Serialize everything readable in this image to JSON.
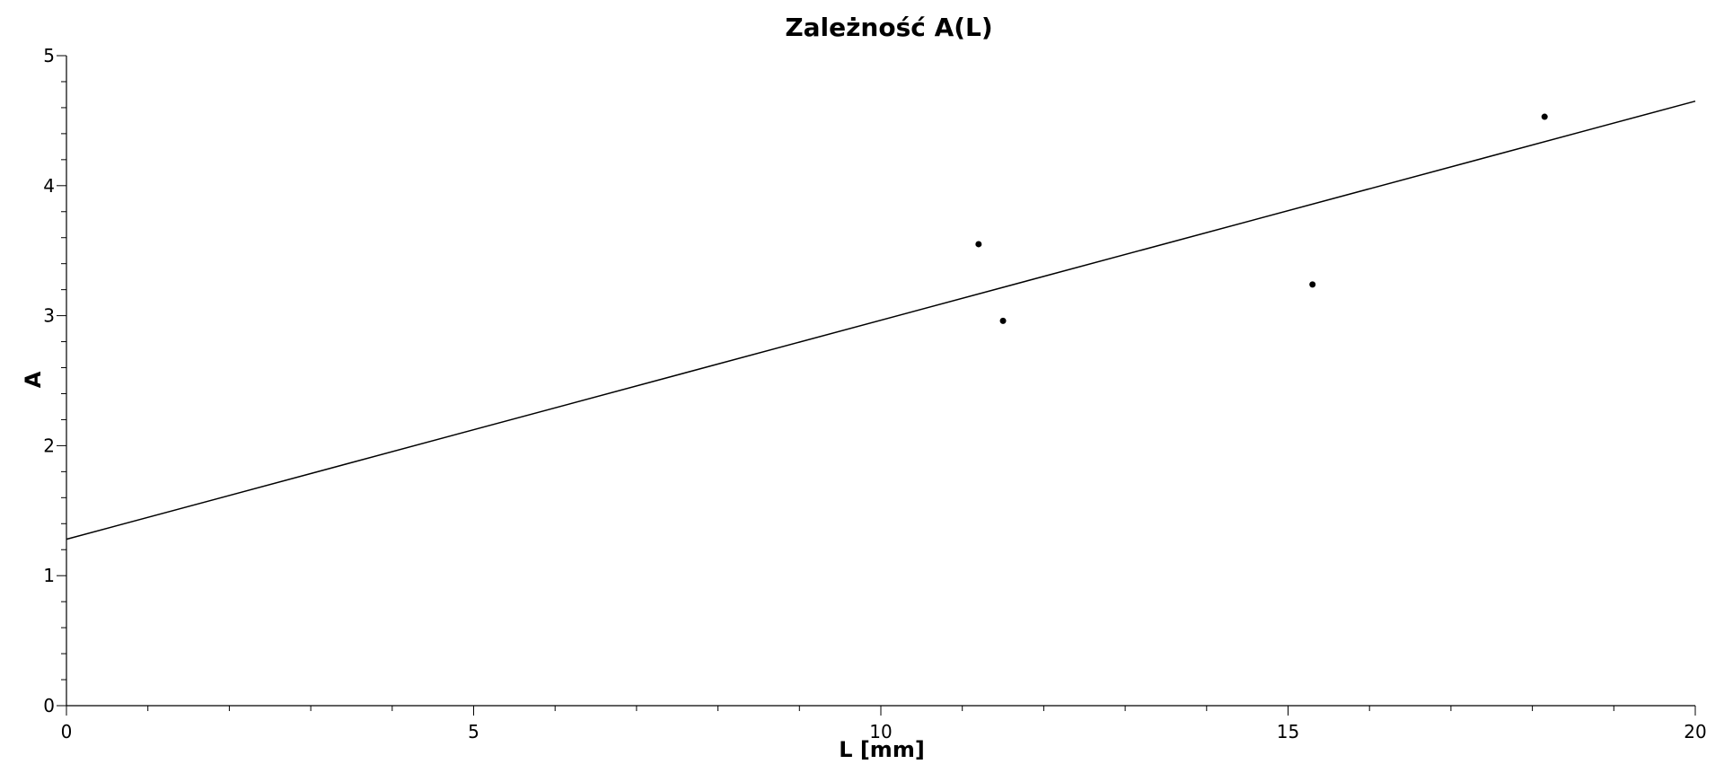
{
  "chart_data": {
    "type": "scatter",
    "title": "Zależność A(L)",
    "xlabel": "L [mm]",
    "ylabel": "A",
    "xlim": [
      0,
      20
    ],
    "ylim": [
      0,
      5
    ],
    "x_ticks": [
      0,
      5,
      10,
      15,
      20
    ],
    "y_ticks": [
      0,
      1,
      2,
      3,
      4,
      5
    ],
    "x_minor_step": 1,
    "y_minor_step": 0.2,
    "grid": false,
    "series": [
      {
        "type": "scatter",
        "x": [
          11.2,
          11.5,
          15.3,
          18.15
        ],
        "y": [
          3.55,
          2.96,
          3.24,
          4.53
        ]
      },
      {
        "type": "line",
        "x": [
          0,
          20
        ],
        "y": [
          1.28,
          4.65
        ]
      }
    ],
    "colors": {
      "axis": "#000000",
      "line": "#000000",
      "points": "#000000"
    }
  }
}
